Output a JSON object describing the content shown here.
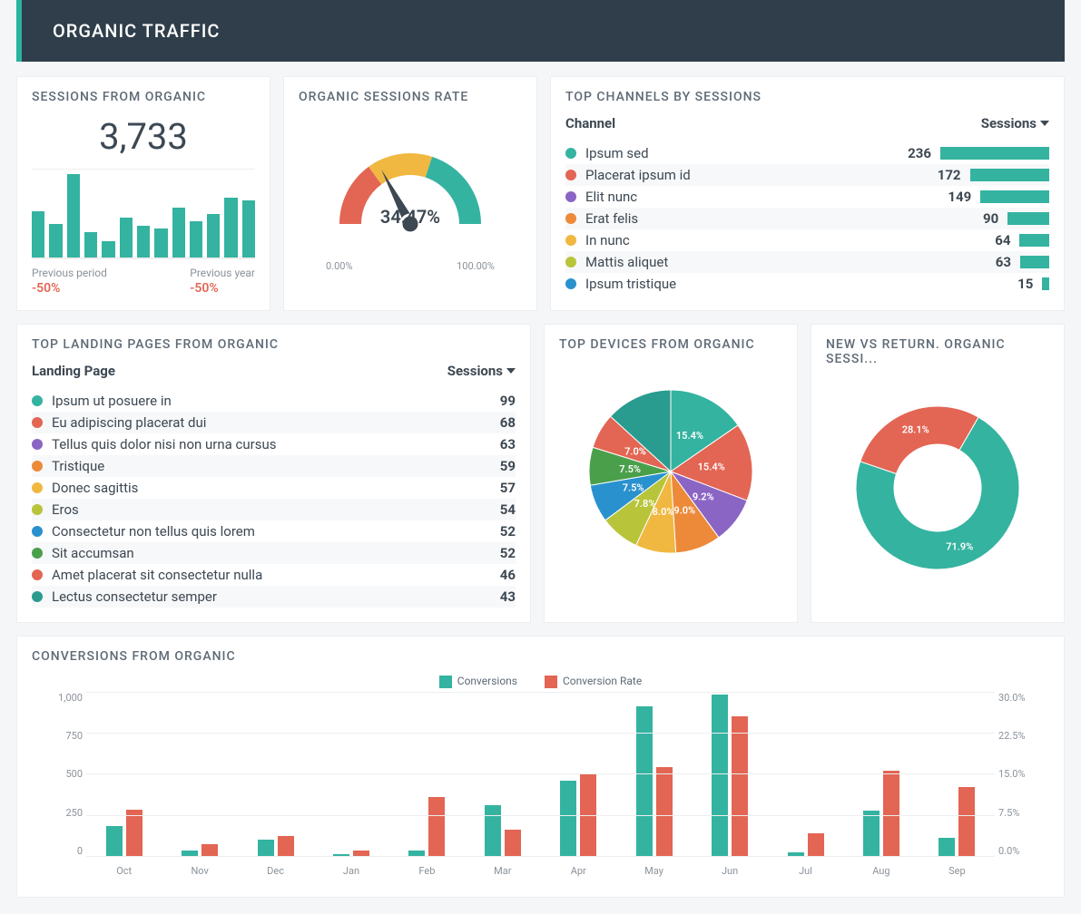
{
  "header": {
    "title": "ORGANIC TRAFFIC"
  },
  "colors": {
    "teal": "#34b3a0",
    "red": "#e36553",
    "yellow": "#f0b840",
    "blue": "#2a91cf",
    "purple": "#8a65c4",
    "orange": "#ec8a3a",
    "lime": "#b8c43a",
    "green": "#4aa04a",
    "teal2": "#2a9b8f",
    "headerBg": "#2f3e4a",
    "accent": "#29b3a0",
    "textMuted": "#8a929a"
  },
  "sessionsFromOrganic": {
    "title": "SESSIONS FROM ORGANIC",
    "value": "3,733",
    "miniBars": [
      55,
      40,
      100,
      30,
      20,
      48,
      38,
      35,
      60,
      44,
      52,
      72,
      68
    ],
    "compare": [
      {
        "label": "Previous period",
        "pct": "-50%"
      },
      {
        "label": "Previous year",
        "pct": "-50%"
      }
    ]
  },
  "organicSessionsRate": {
    "title": "ORGANIC SESSIONS RATE",
    "valueLabel": "34.47%",
    "valuePct": 34.47,
    "minLabel": "0.00%",
    "maxLabel": "100.00%",
    "segments": [
      {
        "color": "#e36553",
        "fromDeg": 180,
        "toDeg": 234
      },
      {
        "color": "#f0b840",
        "fromDeg": 234,
        "toDeg": 288
      },
      {
        "color": "#34b3a0",
        "fromDeg": 288,
        "toDeg": 360
      }
    ],
    "thickness": 24,
    "radius": 78
  },
  "topChannels": {
    "title": "TOP CHANNELS BY SESSIONS",
    "col1": "Channel",
    "col2": "Sessions",
    "maxBarWidth": 120,
    "rows": [
      {
        "label": "Ipsum sed",
        "value": 236,
        "color": "#34b3a0"
      },
      {
        "label": "Placerat ipsum id",
        "value": 172,
        "color": "#e36553"
      },
      {
        "label": "Elit nunc",
        "value": 149,
        "color": "#8a65c4"
      },
      {
        "label": "Erat felis",
        "value": 90,
        "color": "#ec8a3a"
      },
      {
        "label": "In nunc",
        "value": 64,
        "color": "#f0b840"
      },
      {
        "label": "Mattis aliquet",
        "value": 63,
        "color": "#b8c43a"
      },
      {
        "label": "Ipsum tristique",
        "value": 15,
        "color": "#2a91cf"
      }
    ]
  },
  "topLanding": {
    "title": "TOP LANDING PAGES FROM ORGANIC",
    "col1": "Landing Page",
    "col2": "Sessions",
    "rows": [
      {
        "label": "Ipsum ut posuere in",
        "value": 99,
        "color": "#34b3a0"
      },
      {
        "label": "Eu adipiscing placerat dui",
        "value": 68,
        "color": "#e36553"
      },
      {
        "label": "Tellus quis dolor nisi non urna cursus",
        "value": 63,
        "color": "#8a65c4"
      },
      {
        "label": "Tristique",
        "value": 59,
        "color": "#ec8a3a"
      },
      {
        "label": "Donec sagittis",
        "value": 57,
        "color": "#f0b840"
      },
      {
        "label": "Eros",
        "value": 54,
        "color": "#b8c43a"
      },
      {
        "label": "Consectetur non tellus quis lorem",
        "value": 52,
        "color": "#2a91cf"
      },
      {
        "label": "Sit accumsan",
        "value": 52,
        "color": "#4aa04a"
      },
      {
        "label": "Amet placerat sit consectetur nulla",
        "value": 46,
        "color": "#e36553"
      },
      {
        "label": "Lectus consectetur semper",
        "value": 43,
        "color": "#2a9b8f"
      }
    ]
  },
  "topDevices": {
    "title": "TOP DEVICES FROM ORGANIC",
    "radius": 90,
    "slices": [
      {
        "pct": 15.4,
        "label": "15.4%",
        "color": "#34b3a0"
      },
      {
        "pct": 15.4,
        "label": "15.4%",
        "color": "#e36553"
      },
      {
        "pct": 9.2,
        "label": "9.2%",
        "color": "#8a65c4"
      },
      {
        "pct": 9.0,
        "label": "9.0%",
        "color": "#ec8a3a"
      },
      {
        "pct": 8.0,
        "label": "8.0%",
        "color": "#f0b840"
      },
      {
        "pct": 7.8,
        "label": "7.8%",
        "color": "#b8c43a"
      },
      {
        "pct": 7.5,
        "label": "7.5%",
        "color": "#2a91cf"
      },
      {
        "pct": 7.5,
        "label": "7.5%",
        "color": "#4aa04a"
      },
      {
        "pct": 7.0,
        "label": "7.0%",
        "color": "#e36553"
      },
      {
        "pct": 13.2,
        "label": "",
        "color": "#2a9b8f"
      }
    ]
  },
  "newVsReturn": {
    "title": "NEW VS RETURN. ORGANIC SESSI...",
    "innerRadius": 48,
    "outerRadius": 90,
    "slices": [
      {
        "pct": 71.9,
        "label": "71.9%",
        "color": "#34b3a0"
      },
      {
        "pct": 28.1,
        "label": "28.1%",
        "color": "#e36553"
      }
    ]
  },
  "conversions": {
    "title": "CONVERSIONS FROM ORGANIC",
    "legend": [
      {
        "label": "Conversions",
        "color": "#34b3a0"
      },
      {
        "label": "Conversion Rate",
        "color": "#e36553"
      }
    ],
    "yLeft": {
      "max": 1000,
      "ticks": [
        "1,000",
        "750",
        "500",
        "250",
        "0"
      ]
    },
    "yRight": {
      "max": 30,
      "ticks": [
        "30.0%",
        "22.5%",
        "15.0%",
        "7.5%",
        "0.0%"
      ]
    },
    "months": [
      "Oct",
      "Nov",
      "Dec",
      "Jan",
      "Feb",
      "Mar",
      "Apr",
      "May",
      "Jun",
      "Jul",
      "Aug",
      "Sep"
    ],
    "series": [
      {
        "a": 180,
        "b": 280
      },
      {
        "a": 30,
        "b": 70
      },
      {
        "a": 100,
        "b": 120
      },
      {
        "a": 10,
        "b": 35
      },
      {
        "a": 30,
        "b": 360
      },
      {
        "a": 310,
        "b": 160
      },
      {
        "a": 460,
        "b": 500
      },
      {
        "a": 910,
        "b": 540
      },
      {
        "a": 980,
        "b": 850
      },
      {
        "a": 20,
        "b": 135
      },
      {
        "a": 275,
        "b": 520
      },
      {
        "a": 110,
        "b": 420
      }
    ]
  }
}
